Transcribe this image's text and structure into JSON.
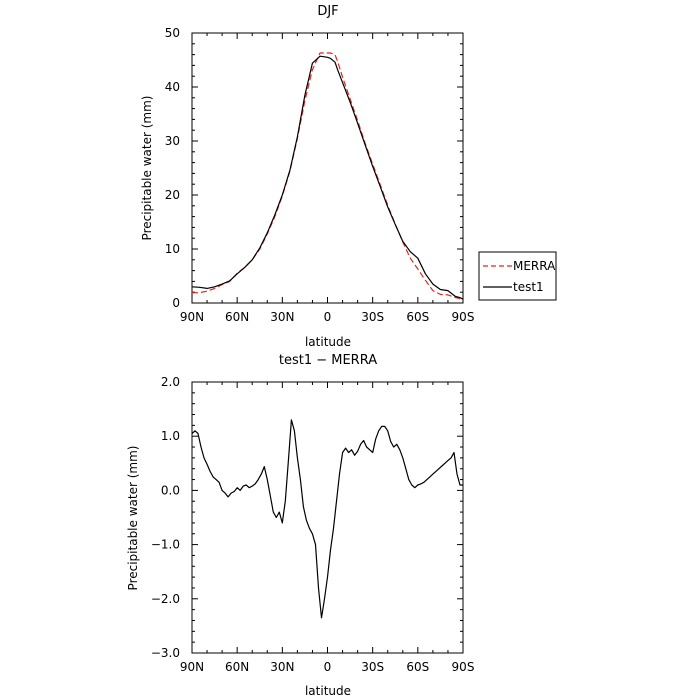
{
  "chart_data": [
    {
      "type": "line",
      "title": "DJF",
      "xlabel": "latitude",
      "ylabel": "Precipitable water  (mm)",
      "xlim": [
        90,
        -90
      ],
      "ylim": [
        0,
        50
      ],
      "x_ticks": [
        90,
        60,
        30,
        0,
        -30,
        -60,
        -90
      ],
      "x_tick_labels": [
        "90N",
        "60N",
        "30N",
        "0",
        "30S",
        "60S",
        "90S"
      ],
      "y_ticks": [
        0,
        10,
        20,
        30,
        40,
        50
      ],
      "y_tick_labels": [
        "0",
        "10",
        "20",
        "30",
        "40",
        "50"
      ],
      "legend": {
        "placement": "right",
        "entries": [
          "MERRA",
          "test1"
        ]
      },
      "series": [
        {
          "name": "MERRA",
          "color": "#e8231f",
          "dash": true,
          "x": [
            90,
            85,
            80,
            75,
            70,
            65,
            60,
            55,
            50,
            45,
            40,
            35,
            30,
            25,
            20,
            15,
            10,
            5,
            2,
            0,
            -2,
            -5,
            -7,
            -10,
            -15,
            -20,
            -25,
            -30,
            -35,
            -40,
            -45,
            -50,
            -55,
            -60,
            -65,
            -70,
            -75,
            -80,
            -85,
            -88,
            -90
          ],
          "y": [
            1.9,
            1.9,
            2.2,
            2.7,
            3.4,
            4.0,
            5.5,
            6.6,
            8.0,
            10.0,
            12.8,
            16.0,
            19.8,
            24.4,
            30.5,
            37.5,
            43.2,
            46.3,
            46.3,
            46.3,
            46.3,
            46.0,
            44.5,
            41.8,
            37.8,
            33.8,
            29.6,
            25.7,
            21.9,
            18.1,
            14.6,
            11.3,
            8.3,
            6.3,
            4.2,
            2.3,
            1.6,
            1.5,
            1.0,
            0.8,
            0.6
          ]
        },
        {
          "name": "test1",
          "color": "#000000",
          "dash": false,
          "x": [
            90,
            85,
            80,
            75,
            70,
            65,
            60,
            55,
            50,
            45,
            40,
            35,
            30,
            25,
            20,
            15,
            10,
            5,
            2,
            0,
            -2,
            -5,
            -7,
            -10,
            -15,
            -20,
            -25,
            -30,
            -35,
            -40,
            -45,
            -50,
            -55,
            -60,
            -65,
            -70,
            -75,
            -80,
            -85,
            -88,
            -90
          ],
          "y": [
            3.0,
            2.9,
            2.7,
            3.0,
            3.5,
            4.1,
            5.4,
            6.6,
            8.0,
            10.2,
            13.0,
            16.3,
            20.0,
            24.6,
            30.8,
            38.5,
            44.4,
            45.7,
            45.6,
            45.5,
            45.3,
            44.6,
            43.0,
            40.8,
            37.2,
            33.3,
            29.3,
            25.3,
            21.6,
            17.8,
            14.5,
            11.4,
            9.5,
            8.3,
            5.4,
            3.5,
            2.5,
            2.3,
            1.2,
            1.0,
            0.7
          ]
        }
      ]
    },
    {
      "type": "line",
      "title": "test1 − MERRA",
      "xlabel": "latitude",
      "ylabel": "Precipitable water  (mm)",
      "xlim": [
        90,
        -90
      ],
      "ylim": [
        -3,
        2
      ],
      "x_ticks": [
        90,
        60,
        30,
        0,
        -30,
        -60,
        -90
      ],
      "x_tick_labels": [
        "90N",
        "60N",
        "30N",
        "0",
        "30S",
        "60S",
        "90S"
      ],
      "y_ticks": [
        2,
        1,
        0,
        -1,
        -2,
        -3
      ],
      "y_tick_labels": [
        "2.0",
        "1.0",
        "0.0",
        "−1.0",
        "−2.0",
        "−3.0"
      ],
      "series": [
        {
          "name": "",
          "color": "#000000",
          "dash": false,
          "x": [
            90,
            88,
            86,
            84,
            82,
            80,
            78,
            76,
            74,
            72,
            70,
            68,
            66,
            64,
            62,
            60,
            58,
            56,
            54,
            52,
            50,
            48,
            46,
            44,
            42,
            40,
            38,
            36,
            34,
            32,
            30,
            28,
            26,
            24,
            22,
            20,
            18,
            16,
            14,
            12,
            10,
            8,
            6,
            4,
            2,
            0,
            -2,
            -4,
            -6,
            -8,
            -10,
            -12,
            -14,
            -16,
            -18,
            -20,
            -22,
            -24,
            -26,
            -28,
            -30,
            -32,
            -34,
            -36,
            -38,
            -40,
            -42,
            -44,
            -46,
            -48,
            -50,
            -52,
            -54,
            -56,
            -58,
            -60,
            -62,
            -64,
            -66,
            -68,
            -70,
            -72,
            -74,
            -76,
            -78,
            -80,
            -82,
            -84,
            -86,
            -88,
            -90
          ],
          "y": [
            1.05,
            1.1,
            1.05,
            0.8,
            0.6,
            0.48,
            0.35,
            0.25,
            0.2,
            0.15,
            0.0,
            -0.05,
            -0.12,
            -0.05,
            -0.02,
            0.05,
            0.0,
            0.08,
            0.1,
            0.05,
            0.08,
            0.12,
            0.2,
            0.3,
            0.44,
            0.2,
            -0.1,
            -0.4,
            -0.5,
            -0.4,
            -0.6,
            -0.2,
            0.55,
            1.3,
            1.1,
            0.6,
            0.2,
            -0.3,
            -0.55,
            -0.7,
            -0.8,
            -1.0,
            -1.8,
            -2.35,
            -2.0,
            -1.6,
            -1.1,
            -0.7,
            -0.2,
            0.3,
            0.7,
            0.78,
            0.7,
            0.75,
            0.65,
            0.72,
            0.85,
            0.92,
            0.8,
            0.75,
            0.7,
            0.95,
            1.1,
            1.18,
            1.18,
            1.1,
            0.9,
            0.8,
            0.85,
            0.75,
            0.6,
            0.4,
            0.2,
            0.1,
            0.05,
            0.1,
            0.12,
            0.15,
            0.2,
            0.25,
            0.3,
            0.35,
            0.4,
            0.45,
            0.5,
            0.55,
            0.6,
            0.7,
            0.3,
            0.1,
            0.1
          ]
        }
      ]
    }
  ]
}
